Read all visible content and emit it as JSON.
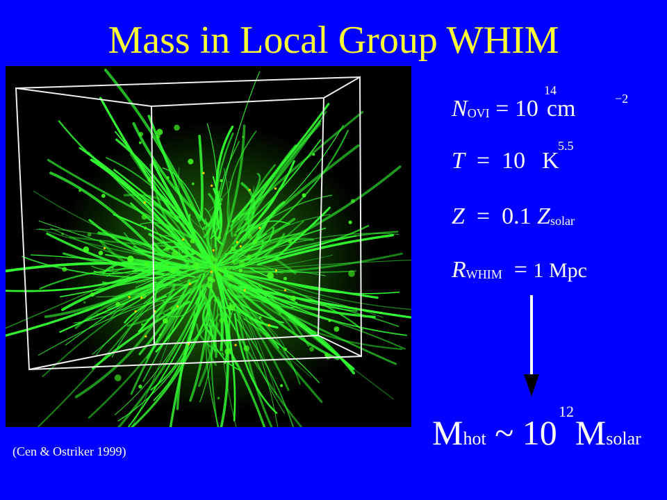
{
  "title": "Mass in Local Group WHIM",
  "caption": "(Cen & Ostriker 1999)",
  "equations": {
    "n_ovi": {
      "symbol": "N",
      "subscript": "OVI",
      "rhs": " = 10",
      "exponent": "14",
      "unit": "cm",
      "unit_exponent": "−2"
    },
    "temp": {
      "symbol": "T",
      "rhs": "  =  10",
      "exponent": "5.5",
      "unit": "K"
    },
    "metal": {
      "symbol": "Z",
      "rhs": "  =  0.1 ",
      "symbol2": "Z",
      "subscript": "solar"
    },
    "radius": {
      "symbol": "R",
      "subscript": "WHIM",
      "rhs": "  = ",
      "value": "1 Mpc"
    }
  },
  "result": {
    "symbol": "M",
    "subscript": "hot",
    "rhs": " ~ 10",
    "exponent": "12",
    "symbol2": "M",
    "subscript2": "solar"
  },
  "colors": {
    "background": "#0000ff",
    "title": "#ffff33",
    "filaments": "#33ff33",
    "text": "#ffffff"
  }
}
